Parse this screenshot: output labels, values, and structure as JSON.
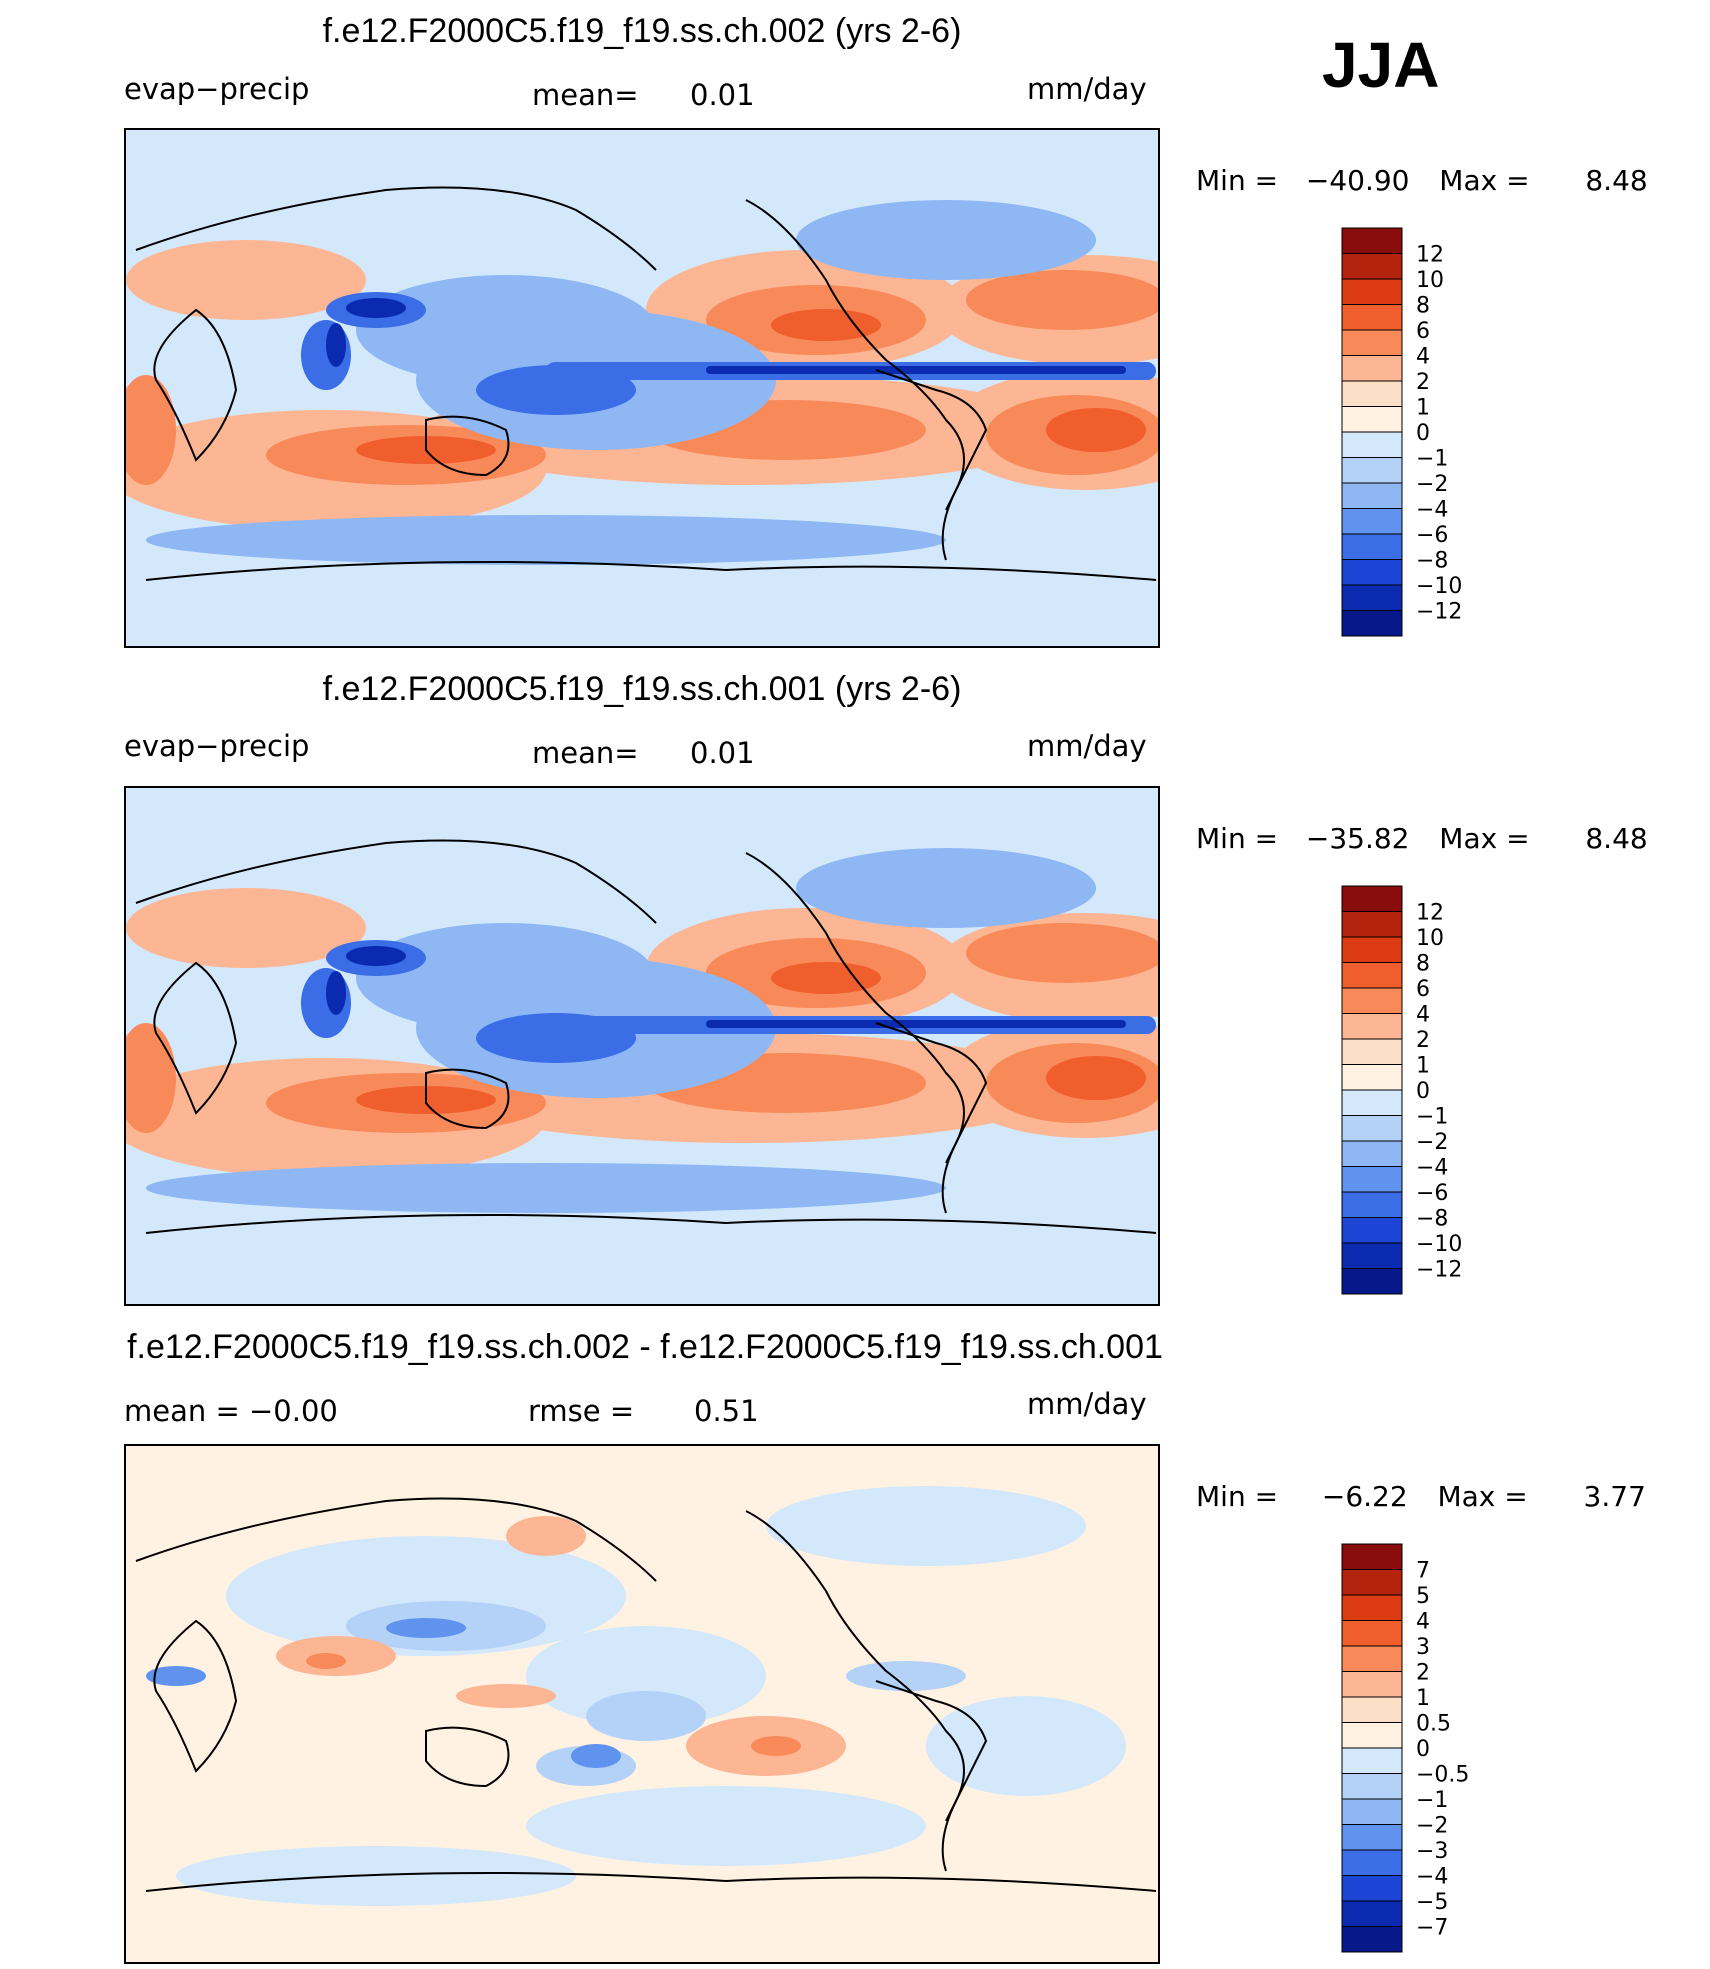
{
  "season_label": "JJA",
  "panels": [
    {
      "title": "f.e12.F2000C5.f19_f19.ss.ch.002 (yrs 2-6)",
      "left_label": "evap−precip",
      "center_label": "mean=",
      "center_value": "0.01",
      "units": "mm/day",
      "min_label": "Min  =",
      "min_value": "−40.90",
      "max_label": "Max  =",
      "max_value": "8.48",
      "map_icon": "world-map-contour-icon",
      "colorbar": {
        "labels": [
          "12",
          "10",
          "8",
          "6",
          "4",
          "2",
          "1",
          "0",
          "−1",
          "−2",
          "−4",
          "−6",
          "−8",
          "−10",
          "−12"
        ],
        "colors": [
          "#8a0d0d",
          "#b3230d",
          "#dc3a12",
          "#f05e2e",
          "#f88a5a",
          "#fcb694",
          "#fddfc8",
          "#fff2e2",
          "#d3e8fb",
          "#b4d2f8",
          "#8eb7f4",
          "#5f93ee",
          "#3a6de6",
          "#1c45d6",
          "#0a2ab0",
          "#06188a"
        ]
      }
    },
    {
      "title": "f.e12.F2000C5.f19_f19.ss.ch.001 (yrs 2-6)",
      "left_label": "evap−precip",
      "center_label": "mean=",
      "center_value": "0.01",
      "units": "mm/day",
      "min_label": "Min  =",
      "min_value": "−35.82",
      "max_label": "Max  =",
      "max_value": "8.48",
      "map_icon": "world-map-contour-icon",
      "colorbar": {
        "labels": [
          "12",
          "10",
          "8",
          "6",
          "4",
          "2",
          "1",
          "0",
          "−1",
          "−2",
          "−4",
          "−6",
          "−8",
          "−10",
          "−12"
        ],
        "colors": [
          "#8a0d0d",
          "#b3230d",
          "#dc3a12",
          "#f05e2e",
          "#f88a5a",
          "#fcb694",
          "#fddfc8",
          "#fff2e2",
          "#d3e8fb",
          "#b4d2f8",
          "#8eb7f4",
          "#5f93ee",
          "#3a6de6",
          "#1c45d6",
          "#0a2ab0",
          "#06188a"
        ]
      }
    },
    {
      "title": "f.e12.F2000C5.f19_f19.ss.ch.002 - f.e12.F2000C5.f19_f19.ss.ch.001",
      "left_label": "mean  =    −0.00",
      "center_label": "rmse  =",
      "center_value": "0.51",
      "units": "mm/day",
      "min_label": "Min  =",
      "min_value": "−6.22",
      "max_label": "Max  =",
      "max_value": "3.77",
      "map_icon": "world-map-contour-icon",
      "colorbar": {
        "labels": [
          "7",
          "5",
          "4",
          "3",
          "2",
          "1",
          "0.5",
          "0",
          "−0.5",
          "−1",
          "−2",
          "−3",
          "−4",
          "−5",
          "−7"
        ],
        "colors": [
          "#8a0d0d",
          "#b3230d",
          "#dc3a12",
          "#f05e2e",
          "#f88a5a",
          "#fcb694",
          "#fddfc8",
          "#fff2e2",
          "#d3e8fb",
          "#b4d2f8",
          "#8eb7f4",
          "#5f93ee",
          "#3a6de6",
          "#1c45d6",
          "#0a2ab0",
          "#06188a"
        ]
      }
    }
  ]
}
